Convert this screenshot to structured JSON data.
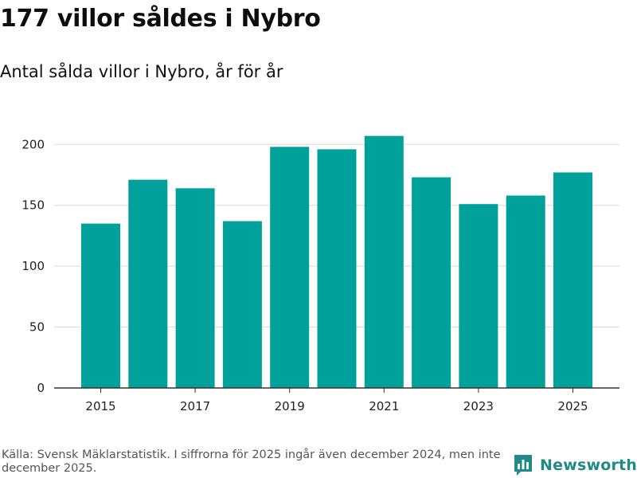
{
  "title": "177 villor såldes i Nybro",
  "subtitle": "Antal sålda villor i Nybro, år för år",
  "footer": {
    "source": "Källa: Svensk Mäklarstatistik. I siffrorna för 2025 ingår även december 2024, men inte december 2025."
  },
  "brand": {
    "name": "Newsworthy",
    "icon": "bar-chart-logo-icon",
    "color": "#1f8a86"
  },
  "colors": {
    "bar": "#00a19a",
    "grid": "#d9d9d9",
    "axis": "#333333"
  },
  "chart_data": {
    "type": "bar",
    "title": "177 villor såldes i Nybro",
    "subtitle": "Antal sålda villor i Nybro, år för år",
    "categories": [
      "2015",
      "2016",
      "2017",
      "2018",
      "2019",
      "2020",
      "2021",
      "2022",
      "2023",
      "2024",
      "2025"
    ],
    "values": [
      135,
      171,
      164,
      137,
      198,
      196,
      207,
      173,
      151,
      158,
      177
    ],
    "x_tick_labels": [
      "2015",
      "2017",
      "2019",
      "2021",
      "2023",
      "2025"
    ],
    "y_ticks": [
      0,
      50,
      100,
      150,
      200
    ],
    "ylim": [
      0,
      210
    ],
    "xlabel": "",
    "ylabel": "",
    "grid": true,
    "legend": "none"
  }
}
